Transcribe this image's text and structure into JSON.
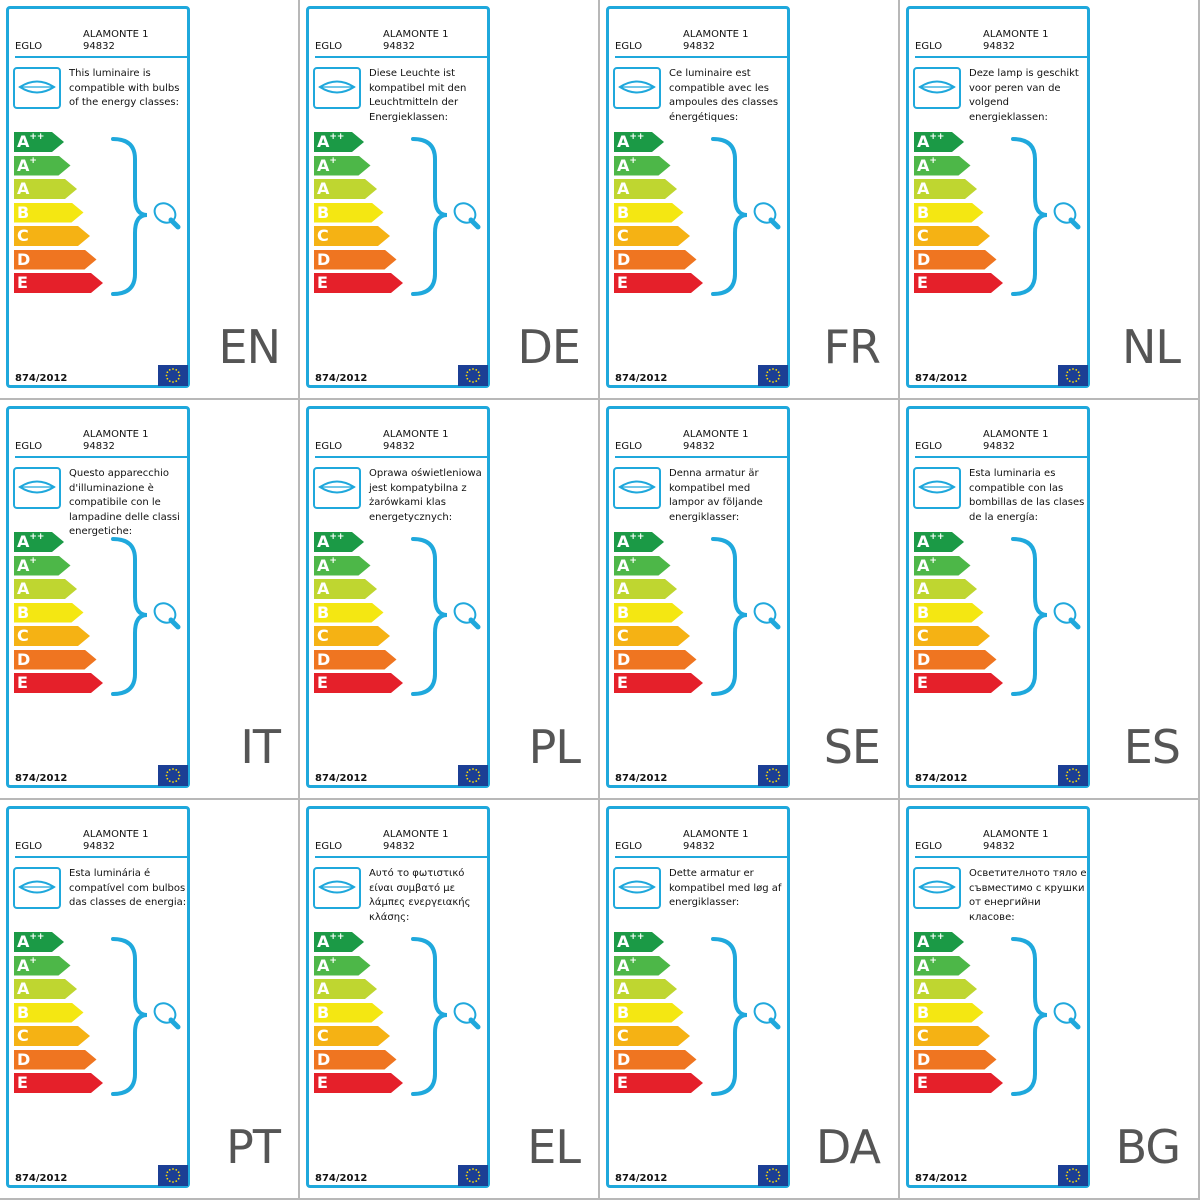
{
  "colors": {
    "accent": "#1fa8dc",
    "classes": [
      "#1b9a46",
      "#4db748",
      "#bfd630",
      "#f4e712",
      "#f5b214",
      "#ef7521",
      "#e5202a"
    ]
  },
  "energy_classes": [
    {
      "letter": "A",
      "sup": "++"
    },
    {
      "letter": "A",
      "sup": "+"
    },
    {
      "letter": "A",
      "sup": ""
    },
    {
      "letter": "B",
      "sup": ""
    },
    {
      "letter": "C",
      "sup": ""
    },
    {
      "letter": "D",
      "sup": ""
    },
    {
      "letter": "E",
      "sup": ""
    }
  ],
  "icons": {
    "luminaire": "ceiling-luminaire-icon",
    "bulb": "light-bulb-icon",
    "flag": "eu-flag-icon"
  },
  "labels": [
    {
      "brand": "EGLO",
      "model": "ALAMONTE 1",
      "code": "94832",
      "text": "This luminaire is compatible with bulbs of the energy classes:",
      "regulation": "874/2012",
      "lang": "EN"
    },
    {
      "brand": "EGLO",
      "model": "ALAMONTE 1",
      "code": "94832",
      "text": "Diese Leuchte ist kompatibel mit den Leuchtmitteln der Energieklassen:",
      "regulation": "874/2012",
      "lang": "DE"
    },
    {
      "brand": "EGLO",
      "model": "ALAMONTE 1",
      "code": "94832",
      "text": "Ce luminaire est compatible avec les ampoules des classes énergétiques:",
      "regulation": "874/2012",
      "lang": "FR"
    },
    {
      "brand": "EGLO",
      "model": "ALAMONTE 1",
      "code": "94832",
      "text": "Deze lamp is geschikt voor peren van de volgend energieklassen:",
      "regulation": "874/2012",
      "lang": "NL"
    },
    {
      "brand": "EGLO",
      "model": "ALAMONTE 1",
      "code": "94832",
      "text": "Questo apparecchio d'illuminazione è compatibile con le lampadine delle classi energetiche:",
      "regulation": "874/2012",
      "lang": "IT"
    },
    {
      "brand": "EGLO",
      "model": "ALAMONTE 1",
      "code": "94832",
      "text": "Oprawa oświetleniowa jest kompatybilna z żarówkami klas energetycznych:",
      "regulation": "874/2012",
      "lang": "PL"
    },
    {
      "brand": "EGLO",
      "model": "ALAMONTE 1",
      "code": "94832",
      "text": "Denna armatur är kompatibel med lampor av följande energiklasser:",
      "regulation": "874/2012",
      "lang": "SE"
    },
    {
      "brand": "EGLO",
      "model": "ALAMONTE 1",
      "code": "94832",
      "text": "Esta luminaria es compatible con las bombillas de las clases de la energía:",
      "regulation": "874/2012",
      "lang": "ES"
    },
    {
      "brand": "EGLO",
      "model": "ALAMONTE 1",
      "code": "94832",
      "text": "Esta luminária é compatível com bulbos das classes de energia:",
      "regulation": "874/2012",
      "lang": "PT"
    },
    {
      "brand": "EGLO",
      "model": "ALAMONTE 1",
      "code": "94832",
      "text": "Αυτό το φωτιστικό είναι συμβατό με λάμπες ενεργειακής κλάσης:",
      "regulation": "874/2012",
      "lang": "EL"
    },
    {
      "brand": "EGLO",
      "model": "ALAMONTE 1",
      "code": "94832",
      "text": "Dette armatur er kompatibel med løg af energiklasser:",
      "regulation": "874/2012",
      "lang": "DA"
    },
    {
      "brand": "EGLO",
      "model": "ALAMONTE 1",
      "code": "94832",
      "text": "Осветителното тяло е съвместимо с крушки от енергийни класове:",
      "regulation": "874/2012",
      "lang": "BG"
    }
  ]
}
